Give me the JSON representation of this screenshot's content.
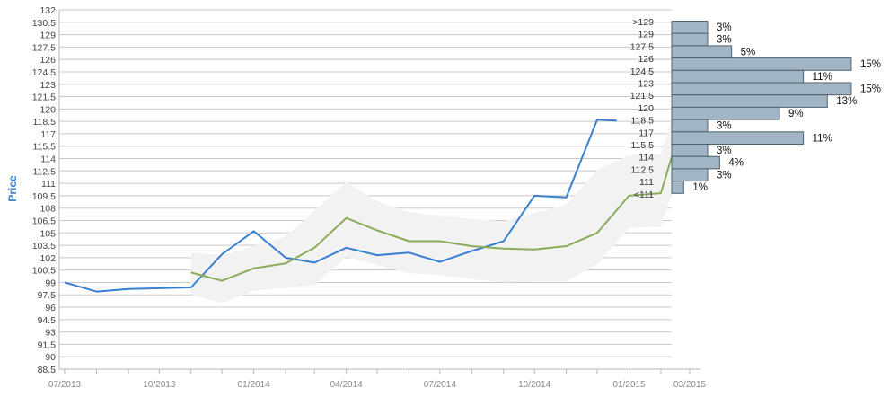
{
  "chart_data": {
    "type": "line",
    "title": "",
    "xlabel": "",
    "ylabel": "Price",
    "ylim": [
      88.5,
      132
    ],
    "grid": true,
    "y_ticks": [
      "132",
      "130.5",
      "129",
      "127.5",
      "126",
      "124.5",
      "123",
      "121.5",
      "120",
      "118.5",
      "117",
      "115.5",
      "114",
      "112.5",
      "111",
      "109.5",
      "108",
      "106.5",
      "105",
      "103.5",
      "102",
      "100.5",
      "99",
      "97.5",
      "96",
      "94.5",
      "93",
      "91.5",
      "90",
      "88.5"
    ],
    "x_ticks": [
      "07/2013",
      "10/2013",
      "01/2014",
      "04/2014",
      "07/2014",
      "10/2014",
      "01/2015",
      "03/2015"
    ],
    "x_tick_dates": [
      "2013-07-01",
      "2013-10-01",
      "2014-01-01",
      "2014-04-01",
      "2014-07-01",
      "2014-10-01",
      "2015-01-01",
      "2015-03-01"
    ],
    "series": [
      {
        "color": "#3a7fcf",
        "x": [
          "2013-07-01",
          "2013-08-01",
          "2013-09-01",
          "2013-10-01",
          "2013-11-01",
          "2013-12-01",
          "2014-01-01",
          "2014-02-01",
          "2014-03-01",
          "2014-04-01",
          "2014-05-01",
          "2014-06-01",
          "2014-07-01",
          "2014-08-01",
          "2014-09-01",
          "2014-10-01",
          "2014-11-01",
          "2014-12-01",
          "2014-12-20"
        ],
        "values": [
          99,
          97.9,
          98.2,
          98.3,
          98.4,
          102.4,
          105.2,
          102,
          101.4,
          103.2,
          102.3,
          102.6,
          101.5,
          102.8,
          104,
          109.5,
          109.3,
          118.7,
          118.6
        ]
      },
      {
        "color": "#8aac5a",
        "x": [
          "2013-11-01",
          "2013-12-01",
          "2014-01-01",
          "2014-02-01",
          "2014-03-01",
          "2014-04-01",
          "2014-05-01",
          "2014-06-01",
          "2014-07-01",
          "2014-08-01",
          "2014-09-01",
          "2014-10-01",
          "2014-11-01",
          "2014-12-01",
          "2015-01-01",
          "2015-02-01",
          "2015-03-01"
        ],
        "values": [
          100.2,
          99.2,
          100.7,
          101.3,
          103.2,
          106.8,
          105.3,
          104,
          104,
          103.4,
          103.1,
          103,
          103.4,
          105,
          109.5,
          109.8,
          121.5
        ]
      }
    ],
    "band": {
      "color": "#f2f2f2",
      "x": [
        "2013-11-01",
        "2013-12-01",
        "2014-01-01",
        "2014-02-01",
        "2014-03-01",
        "2014-04-01",
        "2014-05-01",
        "2014-06-01",
        "2014-07-01",
        "2014-08-01",
        "2014-09-01",
        "2014-10-01",
        "2014-11-01",
        "2014-12-01",
        "2015-01-01",
        "2015-02-01",
        "2015-03-01"
      ],
      "upper": [
        102.6,
        102.3,
        103.4,
        104.6,
        107.7,
        111.2,
        108.8,
        107.5,
        107.1,
        106.7,
        106.4,
        107.4,
        108.4,
        112.6,
        114.4,
        114.5,
        126
      ],
      "lower": [
        97.5,
        96.5,
        98,
        98.3,
        98.7,
        102.1,
        101.1,
        100.1,
        99.9,
        99.4,
        99,
        99.1,
        99.1,
        101.2,
        105.6,
        105.7,
        117
      ]
    },
    "histogram": {
      "color": "#a1b5c4",
      "border": "#506270",
      "bins": [
        {
          "label": ">129",
          "pct": 3,
          "text": "3%"
        },
        {
          "label": "129",
          "pct": 3,
          "text": "3%"
        },
        {
          "label": "127.5",
          "pct": 5,
          "text": "5%"
        },
        {
          "label": "126",
          "pct": 15,
          "text": "15%"
        },
        {
          "label": "124.5",
          "pct": 11,
          "text": "11%"
        },
        {
          "label": "123",
          "pct": 15,
          "text": "15%"
        },
        {
          "label": "121.5",
          "pct": 13,
          "text": "13%"
        },
        {
          "label": "120",
          "pct": 9,
          "text": "9%"
        },
        {
          "label": "118.5",
          "pct": 3,
          "text": "3%"
        },
        {
          "label": "117",
          "pct": 11,
          "text": "11%"
        },
        {
          "label": "115.5",
          "pct": 3,
          "text": "3%"
        },
        {
          "label": "114",
          "pct": 4,
          "text": "4%"
        },
        {
          "label": "112.5",
          "pct": 3,
          "text": "3%"
        },
        {
          "label": "111",
          "pct": 1,
          "text": "1%"
        },
        {
          "label": "<111",
          "pct": 0,
          "text": ""
        }
      ]
    }
  }
}
